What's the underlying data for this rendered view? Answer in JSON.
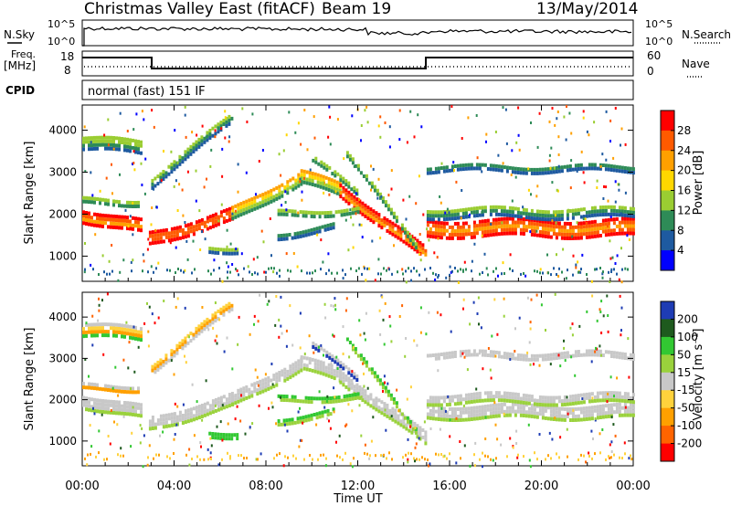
{
  "header": {
    "title": "Christmas Valley East (fitACF)",
    "beam": "Beam 19",
    "date": "13/May/2014"
  },
  "strip_panels": {
    "nsky": {
      "label": "N.Sky",
      "ticks": [
        "10^5",
        "10^0"
      ],
      "right_label": "N.Search",
      "right_ticks": [
        "10^5",
        "10^0"
      ]
    },
    "freq": {
      "label_line1": "Freq.",
      "label_line2": "[MHz]",
      "ticks": [
        "18",
        "8"
      ],
      "right_label": "Nave",
      "right_ticks": [
        "60",
        "0"
      ]
    },
    "cpid": {
      "label": "CPID",
      "mode": "normal (fast) 151 IF"
    }
  },
  "chart_data": [
    {
      "type": "heatmap",
      "name": "power",
      "ylabel": "Slant Range [km]",
      "xlabel": "Time UT",
      "x_ticks": [
        "00:00",
        "04:00",
        "08:00",
        "12:00",
        "16:00",
        "20:00",
        "00:00"
      ],
      "y_ticks": [
        1000,
        2000,
        3000,
        4000
      ],
      "ylim": [
        400,
        4600
      ],
      "xlim_hours": [
        0,
        24
      ],
      "colorbar": {
        "label": "Power [dB]",
        "ticks": [
          "28",
          "24",
          "20",
          "16",
          "12",
          "8",
          "4"
        ],
        "colors": [
          "#ff0000",
          "#ff5a00",
          "#ffa000",
          "#ffd700",
          "#9acd32",
          "#2e8b57",
          "#1e5aa0",
          "#0000ff"
        ]
      }
    },
    {
      "type": "heatmap",
      "name": "velocity",
      "ylabel": "Slant Range [km]",
      "xlabel": "Time UT",
      "x_ticks": [
        "00:00",
        "04:00",
        "08:00",
        "12:00",
        "16:00",
        "20:00",
        "00:00"
      ],
      "y_ticks": [
        1000,
        2000,
        3000,
        4000
      ],
      "ylim": [
        400,
        4600
      ],
      "xlim_hours": [
        0,
        24
      ],
      "colorbar": {
        "label": "Velocity [m s⁻¹]",
        "ticks": [
          "200",
          "100",
          "50",
          "15",
          "-15",
          "-50",
          "-100",
          "-200"
        ],
        "colors": [
          "#1e3cb4",
          "#1e5a1e",
          "#32c832",
          "#9ad23c",
          "#c8c8c8",
          "#ffd23c",
          "#ffa000",
          "#ff6400",
          "#ff0000"
        ]
      }
    }
  ],
  "x_axis_label": "Time UT"
}
